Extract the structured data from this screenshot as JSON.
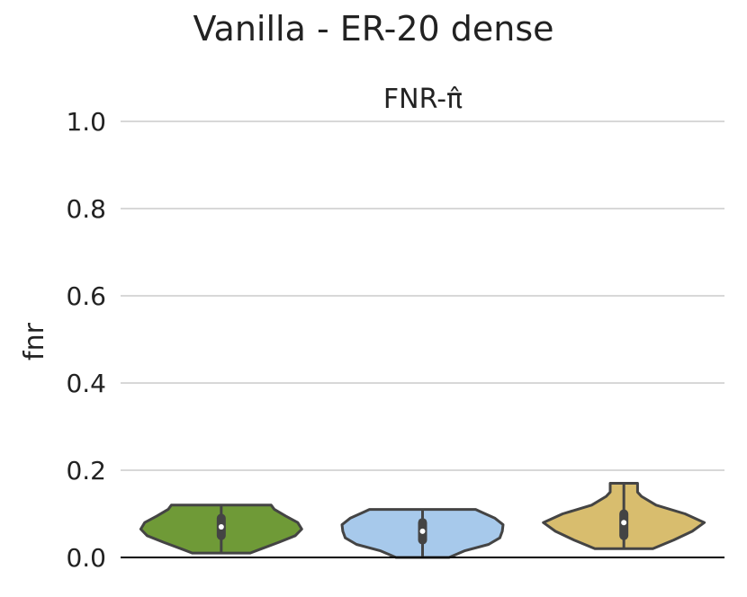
{
  "chart_data": {
    "type": "violin",
    "title": "Vanilla - ER-20 dense",
    "subtitle": "FNR-π̂",
    "ylabel": "fnr",
    "xlabel": "",
    "ylim": [
      0.0,
      1.0
    ],
    "yticks": [
      "0.0",
      "0.2",
      "0.4",
      "0.6",
      "0.8",
      "1.0"
    ],
    "grid": true,
    "violins": [
      {
        "color": "#6f9a37",
        "min": 0.01,
        "max": 0.12,
        "q1": 0.05,
        "median": 0.07,
        "q3": 0.09,
        "profile": [
          [
            0.01,
            0.36
          ],
          [
            0.02,
            0.5
          ],
          [
            0.035,
            0.72
          ],
          [
            0.05,
            0.92
          ],
          [
            0.065,
            1.0
          ],
          [
            0.08,
            0.95
          ],
          [
            0.095,
            0.8
          ],
          [
            0.11,
            0.66
          ],
          [
            0.12,
            0.62
          ]
        ]
      },
      {
        "color": "#a7c9eb",
        "min": 0.0,
        "max": 0.11,
        "q1": 0.04,
        "median": 0.06,
        "q3": 0.08,
        "profile": [
          [
            0.0,
            0.33
          ],
          [
            0.015,
            0.52
          ],
          [
            0.03,
            0.82
          ],
          [
            0.045,
            0.96
          ],
          [
            0.06,
            0.99
          ],
          [
            0.075,
            1.0
          ],
          [
            0.09,
            0.9
          ],
          [
            0.105,
            0.72
          ],
          [
            0.11,
            0.66
          ]
        ]
      },
      {
        "color": "#d8bd6e",
        "min": 0.02,
        "max": 0.17,
        "q1": 0.05,
        "median": 0.08,
        "q3": 0.1,
        "profile": [
          [
            0.02,
            0.36
          ],
          [
            0.04,
            0.62
          ],
          [
            0.06,
            0.85
          ],
          [
            0.08,
            1.0
          ],
          [
            0.1,
            0.76
          ],
          [
            0.12,
            0.4
          ],
          [
            0.14,
            0.22
          ],
          [
            0.15,
            0.17
          ],
          [
            0.165,
            0.17
          ],
          [
            0.17,
            0.17
          ]
        ]
      }
    ]
  }
}
